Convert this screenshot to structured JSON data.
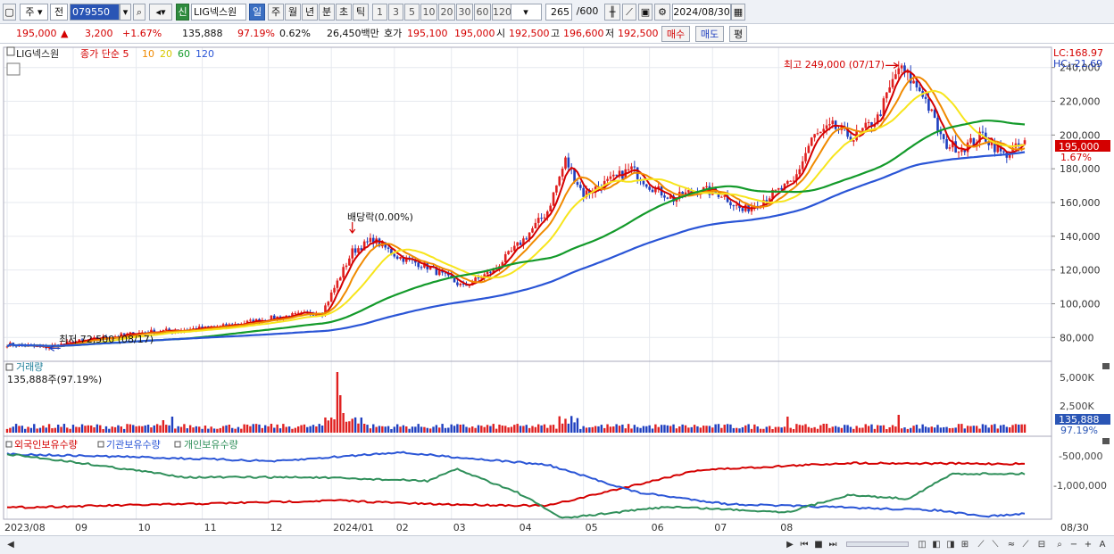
{
  "toolbar": {
    "period_type": "주",
    "prev_label": "전",
    "code": "079550",
    "stock_name": "LIG넥스원",
    "shin_label": "신",
    "periods": [
      "일",
      "주",
      "월",
      "년",
      "분",
      "초",
      "틱"
    ],
    "active_period": "일",
    "minute_units": [
      "1",
      "3",
      "5",
      "10",
      "20",
      "30",
      "60",
      "120"
    ],
    "count": "265",
    "count_max": "/600",
    "date": "2024/08/30"
  },
  "quote": {
    "price": "195,000",
    "arrow": "▲",
    "change": "3,200",
    "change_pct": "+1.67%",
    "volume": "135,888",
    "vol_ratio": "97.19%",
    "turnover": "0.62%",
    "amount": "26,450백만",
    "bid_label": "호가",
    "bid": "195,100",
    "ask": "195,000",
    "open_label": "시",
    "open": "192,500",
    "high_label": "고",
    "high": "196,600",
    "low_label": "저",
    "low": "192,500",
    "buy_label": "매수",
    "sell_label": "매도",
    "avg_label": "평"
  },
  "legend": {
    "name": "LIG넥스원",
    "series": "종가 단순 5",
    "ma10": "10",
    "ma20": "20",
    "ma60": "60",
    "ma120": "120"
  },
  "colors": {
    "up": "#e02020",
    "down": "#1f3fbf",
    "ma5": "#d40000",
    "ma10": "#f08a00",
    "ma20": "#f7e51c",
    "ma60": "#139a2a",
    "ma120": "#2a55d6",
    "foreign": "#d40000",
    "inst": "#2a55d6",
    "indiv": "#2f8f5a"
  },
  "price_panel": {
    "lc_label": "LC:168.97",
    "hc_label": "HC:-21.69",
    "y_ticks": [
      "240,000",
      "220,000",
      "200,000",
      "180,000",
      "160,000",
      "140,000",
      "120,000",
      "100,000",
      "80,000"
    ],
    "y_values": [
      240000,
      220000,
      200000,
      180000,
      160000,
      140000,
      120000,
      100000,
      80000
    ],
    "ylim": [
      68000,
      252000
    ],
    "current_label": "195,000",
    "current_pct": "1.67%",
    "max_annot": "최고 249,000 (07/17)",
    "min_annot": "최저 72,500 (08/17)",
    "dividend_annot": "배당락(0.00%)"
  },
  "volume_panel": {
    "title": "거래량",
    "value": "135,888주(97.19%)",
    "ticks": [
      "5,000K",
      "2,500K"
    ],
    "cur": "135,888",
    "cur_pct": "97.19%"
  },
  "holding_panel": {
    "foreign": "외국인보유수량",
    "inst": "기관보유수량",
    "indiv": "개인보유수량",
    "ticks": [
      "-500,000",
      "-1,000,000"
    ]
  },
  "x_axis": {
    "labels": [
      "2023/08",
      "09",
      "10",
      "11",
      "12",
      "2024/01",
      "02",
      "03",
      "04",
      "05",
      "06",
      "07",
      "08"
    ],
    "right_label": "08/30"
  },
  "chart_data": {
    "type": "candlestick",
    "title": "LIG넥스원",
    "close_keypoints": [
      [
        0,
        76000
      ],
      [
        12,
        74000
      ],
      [
        25,
        78000
      ],
      [
        45,
        83000
      ],
      [
        70,
        86000
      ],
      [
        90,
        92000
      ],
      [
        105,
        95000
      ],
      [
        115,
        131000
      ],
      [
        122,
        138000
      ],
      [
        130,
        128000
      ],
      [
        140,
        122000
      ],
      [
        152,
        110000
      ],
      [
        162,
        120000
      ],
      [
        172,
        138000
      ],
      [
        180,
        155000
      ],
      [
        186,
        185000
      ],
      [
        192,
        165000
      ],
      [
        200,
        172000
      ],
      [
        208,
        180000
      ],
      [
        214,
        170000
      ],
      [
        222,
        162000
      ],
      [
        230,
        168000
      ],
      [
        238,
        165000
      ],
      [
        245,
        155000
      ],
      [
        255,
        165000
      ],
      [
        262,
        172000
      ],
      [
        268,
        198000
      ],
      [
        275,
        205000
      ],
      [
        282,
        198000
      ],
      [
        290,
        210000
      ],
      [
        297,
        240000
      ],
      [
        305,
        225000
      ],
      [
        312,
        195000
      ],
      [
        318,
        192000
      ],
      [
        325,
        200000
      ],
      [
        332,
        188000
      ],
      [
        339,
        195000
      ]
    ],
    "bars": 340,
    "holdings": {
      "foreign": "rising",
      "inst": "falling",
      "indiv": "mixed"
    }
  }
}
